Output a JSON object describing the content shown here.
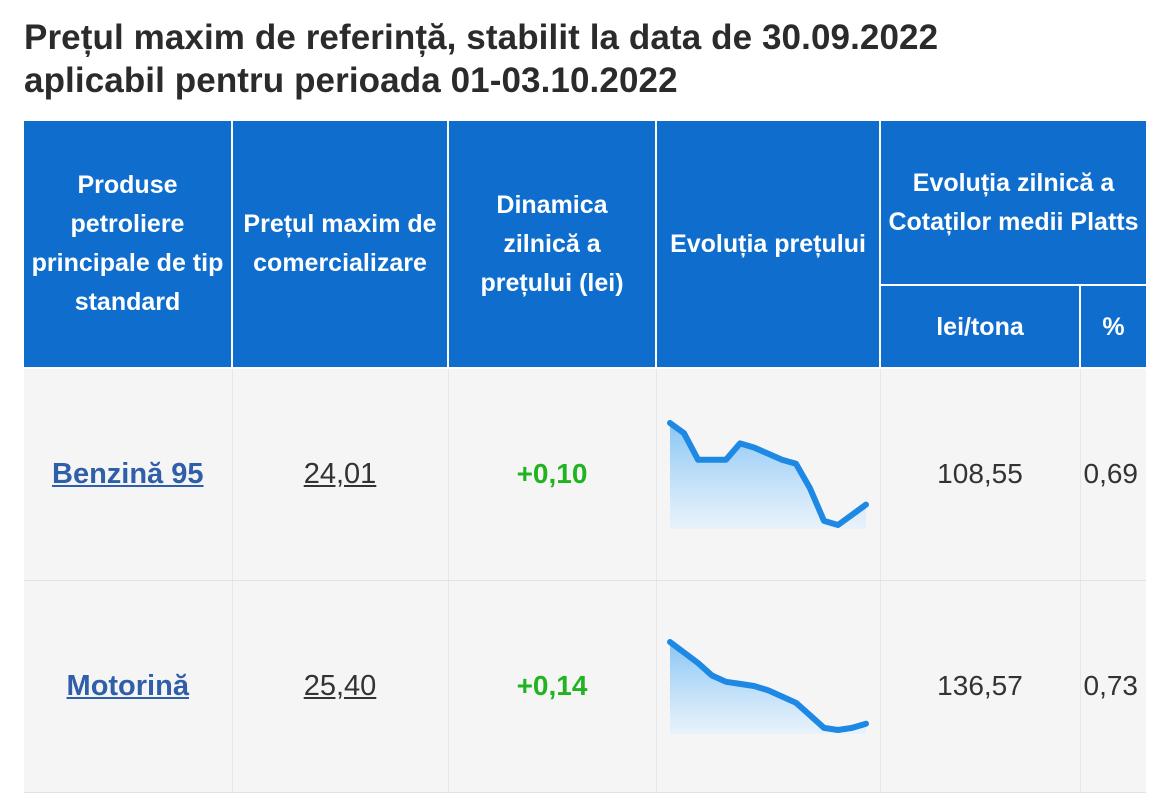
{
  "title": {
    "line1": "Prețul maxim de referință, stabilit la data de 30.09.2022",
    "line2": "aplicabil pentru perioada 01-03.10.2022"
  },
  "headers": {
    "produse": "Produse petroliere principale de tip standard",
    "pret_maxim": "Prețul maxim de comercializare",
    "dinamica": "Dinamica zilnică a prețului (lei)",
    "evolutia_pretului": "Evoluția prețului",
    "evolutia_platts": "Evoluția zilnică a Cotaților medii Platts",
    "lei_tona": "lei/tona",
    "procent": "%"
  },
  "colors": {
    "header_bg": "#0f6ecd",
    "row_bg": "#f5f5f5",
    "link": "#2f5fa8",
    "positive": "#22b322",
    "spark_line": "#1e88e5"
  },
  "rows": [
    {
      "product": "Benzină 95",
      "price": "24,01",
      "delta": "+0,10",
      "platts_lei_tona": "108,55",
      "platts_pct": "0,69",
      "spark": [
        100,
        95,
        82,
        82,
        82,
        90,
        88,
        85,
        82,
        80,
        68,
        52,
        50,
        55,
        60
      ]
    },
    {
      "product": "Motorină",
      "price": "25,40",
      "delta": "+0,14",
      "platts_lei_tona": "136,57",
      "platts_pct": "0,73",
      "spark": [
        100,
        95,
        90,
        84,
        81,
        80,
        79,
        77,
        74,
        71,
        65,
        59,
        58,
        59,
        61
      ]
    }
  ]
}
